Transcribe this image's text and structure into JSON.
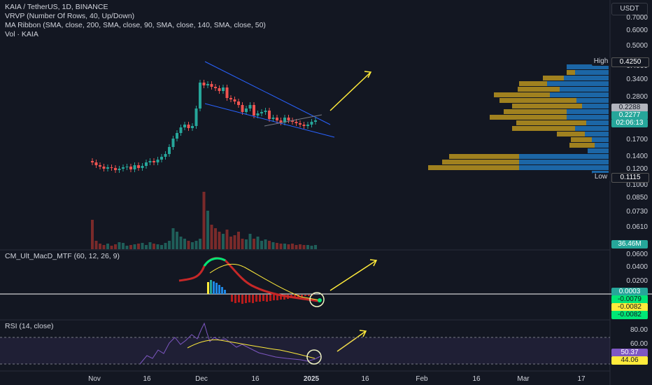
{
  "header": {
    "symbol_line": "KAIA / TetherUS, 1D, BINANCE",
    "indicator_vrvp": "VRVP (Number Of Rows, 40, Up/Down)",
    "indicator_ma": "MA Ribbon (SMA, close, 200, SMA, close, 90, SMA, close, 140, SMA, close, 50)",
    "indicator_vol": "Vol · KAIA"
  },
  "currency_button": "USDT",
  "price_axis": [
    "0.7000",
    "0.6000",
    "0.5000",
    "0.4000",
    "0.3400",
    "0.2800",
    "0.2000",
    "0.1700",
    "0.1400",
    "0.1200",
    "0.1000",
    "0.0850",
    "0.0730",
    "0.0610"
  ],
  "price_tags": {
    "high_label": "High",
    "high_value": "0.4250",
    "ma_value": "0.2288",
    "last_price": "0.2277",
    "countdown": "02:06:13",
    "low_label": "Low",
    "low_value": "0.1115",
    "volume_value": "36.46M"
  },
  "macd": {
    "title": "CM_Ult_MacD_MTF (60, 12, 26, 9)",
    "axis": [
      "0.0600",
      "0.0400",
      "0.0200"
    ],
    "tags": [
      "0.0003",
      "-0.0079",
      "-0.0082",
      "-0.0082"
    ]
  },
  "rsi": {
    "title": "RSI (14, close)",
    "axis": [
      "80.00",
      "60.00"
    ],
    "tags": [
      "50.37",
      "44.06"
    ]
  },
  "time_axis": [
    "Nov",
    "16",
    "Dec",
    "16",
    "2025",
    "16",
    "Feb",
    "16",
    "Mar",
    "17"
  ],
  "colors": {
    "background": "#131722",
    "up": "#26a69a",
    "down": "#ef5350",
    "trendline": "#2962ff",
    "arrow": "#ffeb3b",
    "vp_up": "#1e6fb5",
    "vp_down": "#b08d1f"
  }
}
